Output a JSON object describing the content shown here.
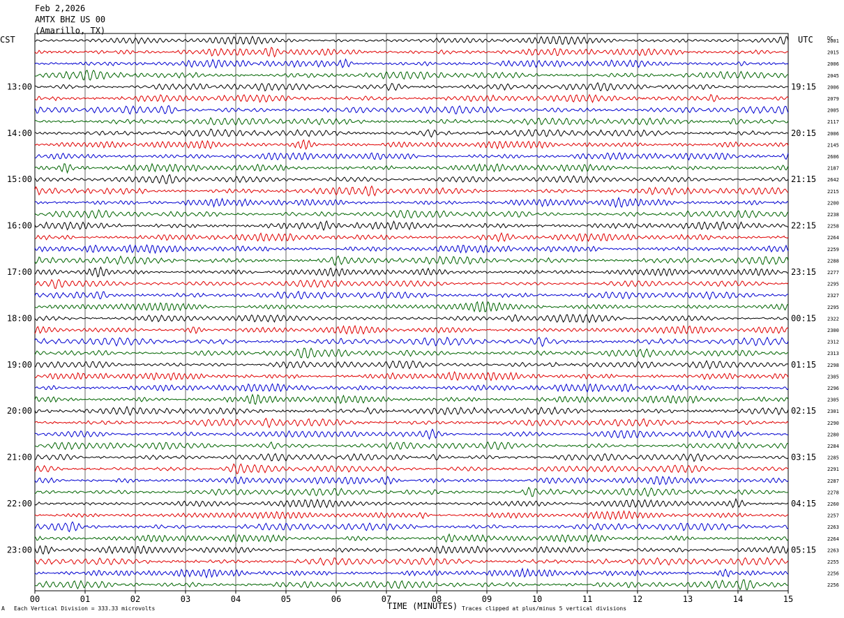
{
  "header": {
    "date": "Feb 2,2026",
    "station": "AMTX BHZ US 00",
    "location": "(Amarillo, TX)"
  },
  "left_tz": "CST",
  "right_tz": "UTC",
  "right_col_label": "DC",
  "footer": {
    "scale_note": "Each Vertical Division =  333.33 microvolts",
    "clip_note": "Traces clipped at plus/minus 5 vertical divisions",
    "mark": "A"
  },
  "colors": {
    "trace_cycle": [
      "#000000",
      "#e00000",
      "#0000d0",
      "#006400"
    ],
    "grid": "#000000"
  },
  "chart_data": {
    "type": "line",
    "title": "",
    "xlabel": "TIME (MINUTES)",
    "ylabel": "",
    "xlim": [
      0,
      15
    ],
    "x_ticks": [
      "00",
      "01",
      "02",
      "03",
      "04",
      "05",
      "06",
      "07",
      "08",
      "09",
      "10",
      "11",
      "12",
      "13",
      "14",
      "15"
    ],
    "left_hour_labels": [
      "13:00",
      "14:00",
      "15:00",
      "16:00",
      "17:00",
      "18:00",
      "19:00",
      "20:00",
      "21:00",
      "22:00",
      "23:00"
    ],
    "right_hour_labels": [
      "19:15",
      "20:15",
      "21:15",
      "22:15",
      "23:15",
      "00:15",
      "01:15",
      "02:15",
      "03:15",
      "04:15",
      "05:15"
    ],
    "trace_count": 48,
    "dc_offsets": [
      "2001",
      "2015",
      "2006",
      "2045",
      "2006",
      "2079",
      "2005",
      "2117",
      "2006",
      "2145",
      "2606",
      "2187",
      "2642",
      "2215",
      "2200",
      "2238",
      "2258",
      "2264",
      "2259",
      "2288",
      "2277",
      "2295",
      "2327",
      "2295",
      "2322",
      "2300",
      "2312",
      "2313",
      "2298",
      "2305",
      "2296",
      "2305",
      "2301",
      "2290",
      "2280",
      "2284",
      "2285",
      "2291",
      "2287",
      "2278",
      "2260",
      "2257",
      "2263",
      "2264",
      "2263",
      "2255",
      "2256",
      "2256"
    ]
  }
}
